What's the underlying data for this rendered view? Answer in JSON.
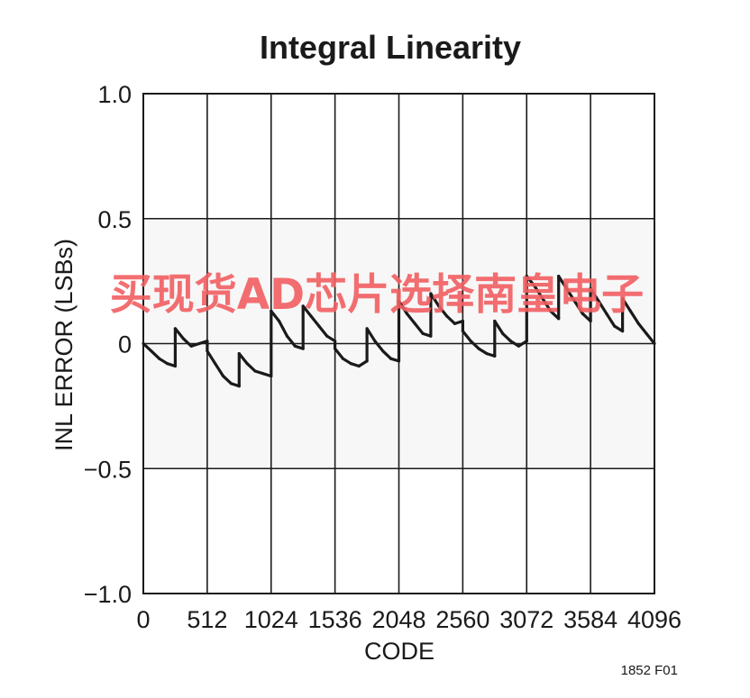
{
  "chart_data": {
    "type": "line",
    "title": "Integral Linearity",
    "xlabel": "CODE",
    "ylabel": "INL ERROR (LSBs)",
    "xlim": [
      0,
      4096
    ],
    "ylim": [
      -1.0,
      1.0
    ],
    "x_ticks": [
      0,
      512,
      1024,
      1536,
      2048,
      2560,
      3072,
      3584,
      4096
    ],
    "x_tick_labels": [
      "0",
      "512",
      "1024",
      "1536",
      "2048",
      "2560",
      "3072",
      "3584",
      "4096"
    ],
    "y_ticks": [
      1.0,
      0.5,
      0,
      -0.5,
      -1.0
    ],
    "y_tick_labels": [
      "1.0",
      "0.5",
      "0",
      "−0.5",
      "−1.0"
    ],
    "grid": true,
    "legend": "none",
    "line_color": "#1a1a1a",
    "series": [
      {
        "x": [
          0,
          64,
          128,
          192,
          256,
          256,
          320,
          384,
          448,
          512,
          512,
          576,
          640,
          704,
          768,
          768,
          832,
          896,
          960,
          1024,
          1024,
          1088,
          1152,
          1216,
          1280,
          1280,
          1344,
          1408,
          1472,
          1536,
          1536,
          1600,
          1664,
          1728,
          1792,
          1792,
          1856,
          1920,
          1984,
          2048,
          2048,
          2112,
          2176,
          2240,
          2304,
          2304,
          2368,
          2432,
          2496,
          2560,
          2560,
          2624,
          2688,
          2752,
          2816,
          2816,
          2880,
          2944,
          3008,
          3072,
          3072,
          3136,
          3200,
          3264,
          3328,
          3328,
          3392,
          3456,
          3520,
          3584,
          3584,
          3648,
          3712,
          3776,
          3840,
          3840,
          3904,
          3968,
          4032,
          4096
        ],
        "y": [
          0.0,
          -0.03,
          -0.06,
          -0.08,
          -0.09,
          0.06,
          0.02,
          -0.01,
          0.0,
          0.01,
          -0.03,
          -0.08,
          -0.13,
          -0.16,
          -0.17,
          -0.04,
          -0.08,
          -0.11,
          -0.12,
          -0.13,
          0.13,
          0.09,
          0.03,
          -0.01,
          -0.02,
          0.15,
          0.11,
          0.07,
          0.03,
          0.01,
          -0.02,
          -0.06,
          -0.08,
          -0.09,
          -0.07,
          0.06,
          0.01,
          -0.03,
          -0.06,
          -0.07,
          0.17,
          0.12,
          0.08,
          0.04,
          0.03,
          0.2,
          0.15,
          0.11,
          0.08,
          0.09,
          0.05,
          0.01,
          -0.02,
          -0.04,
          -0.05,
          0.09,
          0.04,
          0.01,
          -0.01,
          0.01,
          0.27,
          0.23,
          0.18,
          0.13,
          0.1,
          0.27,
          0.22,
          0.17,
          0.12,
          0.09,
          0.22,
          0.17,
          0.12,
          0.07,
          0.05,
          0.18,
          0.13,
          0.08,
          0.04,
          0.0
        ]
      }
    ]
  },
  "figure_id": "1852 F01",
  "watermark": "买现货AD芯片选择南皇电子",
  "colors": {
    "text": "#1a1a1a",
    "grid": "#1a1a1a",
    "watermark": "#f25f62",
    "inner_band": "#f7f7f7"
  }
}
